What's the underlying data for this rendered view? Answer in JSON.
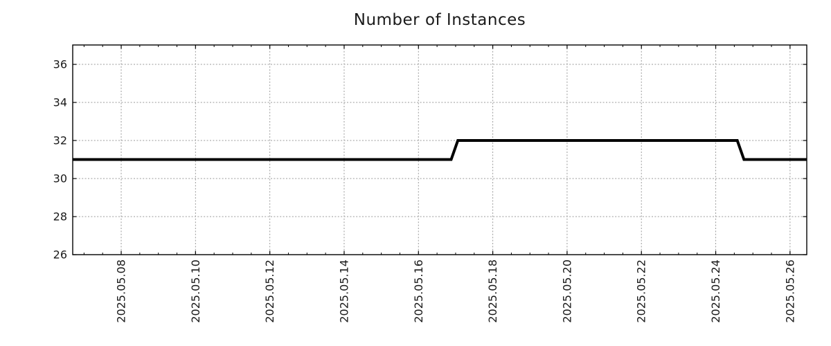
{
  "chart_data": {
    "type": "line",
    "title": "Number of Instances",
    "xlabel": "",
    "ylabel": "",
    "legend": {
      "visible": false
    },
    "grid": {
      "visible": true,
      "style": "dashed",
      "color": "#9a9a9a"
    },
    "x_axis": {
      "unit": "date",
      "tick_labels": [
        "2025.05.08",
        "2025.05.10",
        "2025.05.12",
        "2025.05.14",
        "2025.05.16",
        "2025.05.18",
        "2025.05.20",
        "2025.05.22",
        "2025.05.24",
        "2025.05.26"
      ],
      "tick_positions_day": [
        8,
        10,
        12,
        14,
        16,
        18,
        20,
        22,
        24,
        26
      ],
      "minor_tick_step_days": 0.5,
      "range_days": [
        6.695,
        26.45
      ],
      "label_rotation_deg": -90
    },
    "y_axis": {
      "ticks": [
        26,
        28,
        30,
        32,
        34,
        36
      ],
      "range": [
        26,
        37.02
      ]
    },
    "series": [
      {
        "name": "instances",
        "color": "#000000",
        "line_width": 4,
        "points": [
          {
            "x_day": 6.695,
            "date": "2025-05-06 ~17:00",
            "value": 31
          },
          {
            "x_day": 16.88,
            "date": "2025-05-16 ~21:00",
            "value": 31
          },
          {
            "x_day": 17.06,
            "date": "2025-05-17 ~01:30",
            "value": 32
          },
          {
            "x_day": 24.58,
            "date": "2025-05-24 ~14:00",
            "value": 32
          },
          {
            "x_day": 24.76,
            "date": "2025-05-24 ~18:00",
            "value": 31
          },
          {
            "x_day": 26.45,
            "date": "2025-05-26 ~11:00",
            "value": 31
          }
        ]
      }
    ],
    "colors": {
      "background": "#ffffff",
      "axis": "#000000",
      "text": "#1a1a1a",
      "line": "#000000"
    }
  }
}
